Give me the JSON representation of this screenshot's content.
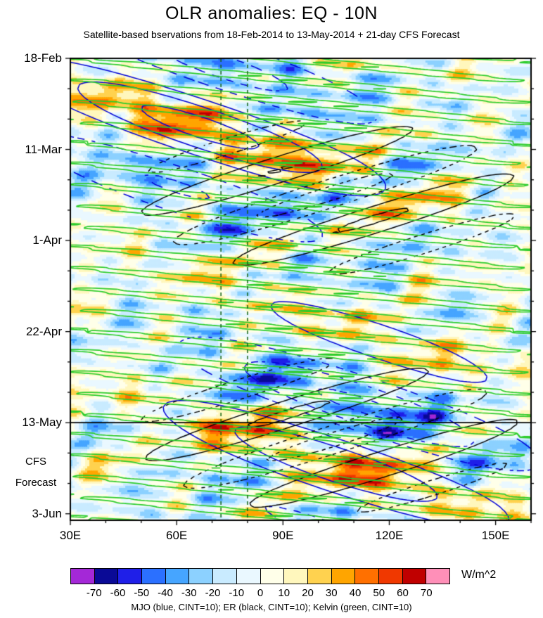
{
  "title": "OLR anomalies: EQ - 10N",
  "subtitle": "Satellite-based bservations from 18-Feb-2014 to 13-May-2014 + 21-day CFS Forecast",
  "footer": "MJO (blue, CINT=10); ER (black, CINT=10); Kelvin (green, CINT=10)",
  "unit_label": "W/m^2",
  "forecast_annotation": {
    "line1": "CFS",
    "line2": "Forecast"
  },
  "chart_data": {
    "type": "heatmap",
    "title": "OLR anomalies: EQ - 10N",
    "subtitle": "Satellite-based bservations from 18-Feb-2014 to 13-May-2014 + 21-day CFS Forecast",
    "x_axis": {
      "unit": "degrees east longitude",
      "tick_labels": [
        "30E",
        "60E",
        "90E",
        "120E",
        "150E"
      ],
      "tick_values": [
        30,
        60,
        90,
        120,
        150
      ],
      "minor_tick_step": 10,
      "range": [
        30,
        160
      ]
    },
    "y_axis": {
      "unit": "date, increasing downward",
      "tick_labels": [
        "18-Feb",
        "11-Mar",
        "1-Apr",
        "22-Apr",
        "13-May",
        "3-Jun"
      ],
      "tick_days": [
        0,
        21,
        42,
        63,
        84,
        105
      ],
      "minor_tick_step_days": 7,
      "range_days": [
        0,
        106.5
      ]
    },
    "colorbar": {
      "unit": "W/m^2",
      "levels": [
        -70,
        -60,
        -50,
        -40,
        -30,
        -20,
        -10,
        0,
        10,
        20,
        30,
        40,
        50,
        60,
        70
      ],
      "tick_labels": [
        "-70",
        "-60",
        "-50",
        "-40",
        "-30",
        "-20",
        "-10",
        "0",
        "10",
        "20",
        "30",
        "40",
        "50",
        "60",
        "70"
      ],
      "colors": [
        "#A428D7",
        "#0A0A96",
        "#1F1FE8",
        "#2B70FF",
        "#46A5FF",
        "#8CD1FF",
        "#C9EBFF",
        "#EAF8FF",
        "#FFFFE9",
        "#FFF7BD",
        "#FFD24F",
        "#FFA500",
        "#FF7000",
        "#F03800",
        "#C00000",
        "#FF8FB8"
      ]
    },
    "overlays": [
      {
        "name": "MJO",
        "color": "#0000D5",
        "cint": 10
      },
      {
        "name": "ER",
        "color": "#000000",
        "cint": 10
      },
      {
        "name": "Kelvin",
        "color": "#2BCC2B",
        "cint": 10
      }
    ],
    "forecast_start_label": "13-May",
    "forecast_start_day": 84,
    "reference_lines": {
      "vertical_dashed_green_longitudes": [
        72.5,
        80
      ],
      "color": "#146414"
    }
  }
}
